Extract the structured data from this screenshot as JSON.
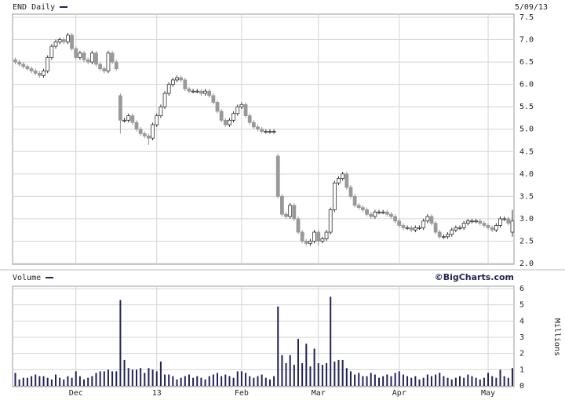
{
  "chart_data": [
    {
      "type": "candlestick",
      "title": "END Daily",
      "subtitle": "5/09/13",
      "up_color": "#ffffff",
      "down_color": "#999999",
      "outline_color": "#333333",
      "ylim": [
        2.0,
        7.5
      ],
      "yticks": [
        {
          "value": 2,
          "label": "2.0"
        },
        2.5,
        {
          "value": 3,
          "label": "3.0"
        },
        3.5,
        {
          "value": 4,
          "label": "4.0"
        },
        4.5,
        {
          "value": 5,
          "label": "5.0"
        },
        5.5,
        {
          "value": 6,
          "label": "6.0"
        },
        6.5,
        {
          "value": 7,
          "label": "7.0"
        },
        7.5
      ],
      "grid": true,
      "open": [
        6.55,
        6.5,
        6.45,
        6.4,
        6.35,
        6.3,
        6.25,
        6.2,
        6.3,
        6.6,
        6.85,
        6.95,
        7.0,
        6.95,
        7.1,
        6.8,
        6.6,
        6.7,
        6.55,
        6.5,
        6.7,
        6.45,
        6.35,
        6.3,
        6.7,
        6.5,
        5.75,
        5.2,
        5.2,
        5.3,
        5.15,
        5.0,
        4.9,
        4.85,
        4.8,
        5.1,
        5.3,
        5.5,
        5.8,
        6.0,
        6.1,
        6.15,
        6.1,
        5.9,
        5.85,
        5.85,
        5.85,
        5.8,
        5.85,
        5.75,
        5.6,
        5.4,
        5.2,
        5.1,
        5.2,
        5.35,
        5.5,
        5.55,
        5.3,
        5.15,
        5.05,
        5.0,
        4.95,
        4.95,
        4.95,
        4.4,
        3.5,
        3.1,
        3.05,
        3.3,
        3.0,
        2.7,
        2.5,
        2.45,
        2.5,
        2.7,
        2.5,
        2.55,
        2.7,
        3.2,
        3.8,
        3.9,
        4.0,
        3.7,
        3.5,
        3.3,
        3.25,
        3.2,
        3.1,
        3.05,
        3.15,
        3.15,
        3.15,
        3.1,
        3.05,
        2.95,
        2.85,
        2.8,
        2.8,
        2.75,
        2.8,
        2.8,
        2.95,
        3.05,
        2.9,
        2.7,
        2.6,
        2.6,
        2.65,
        2.75,
        2.8,
        2.8,
        2.9,
        2.95,
        2.95,
        2.95,
        2.9,
        2.85,
        2.8,
        2.75,
        2.85,
        3.0,
        3.0,
        2.7
      ],
      "high": [
        6.6,
        6.55,
        6.5,
        6.45,
        6.4,
        6.35,
        6.3,
        6.35,
        6.65,
        6.9,
        7.0,
        7.05,
        7.05,
        7.15,
        7.15,
        6.85,
        6.75,
        6.75,
        6.6,
        6.75,
        6.75,
        6.5,
        6.4,
        6.75,
        6.75,
        6.55,
        5.8,
        5.25,
        5.35,
        5.35,
        5.2,
        5.05,
        4.95,
        4.9,
        5.15,
        5.35,
        5.55,
        5.85,
        6.05,
        6.15,
        6.2,
        6.2,
        6.15,
        5.95,
        5.9,
        5.9,
        5.9,
        5.9,
        5.9,
        5.8,
        5.65,
        5.45,
        5.25,
        5.25,
        5.4,
        5.55,
        5.6,
        5.6,
        5.35,
        5.2,
        5.1,
        5.05,
        5.0,
        5.0,
        5.0,
        4.45,
        3.55,
        3.15,
        3.35,
        3.35,
        3.05,
        2.75,
        2.55,
        2.55,
        2.75,
        2.75,
        2.6,
        2.75,
        3.25,
        3.85,
        3.95,
        4.05,
        4.05,
        3.75,
        3.55,
        3.35,
        3.3,
        3.25,
        3.15,
        3.2,
        3.2,
        3.2,
        3.2,
        3.15,
        3.1,
        3.0,
        2.9,
        2.85,
        2.85,
        2.85,
        2.85,
        3.0,
        3.1,
        3.1,
        2.95,
        2.75,
        2.65,
        2.7,
        2.8,
        2.85,
        2.85,
        2.95,
        3.0,
        3.0,
        3.0,
        3.0,
        2.95,
        2.9,
        2.85,
        2.9,
        3.05,
        3.05,
        3.05,
        3.2
      ],
      "low": [
        6.45,
        6.4,
        6.35,
        6.3,
        6.25,
        6.2,
        6.15,
        6.15,
        6.25,
        6.55,
        6.8,
        6.9,
        6.9,
        6.9,
        6.75,
        6.55,
        6.55,
        6.5,
        6.45,
        6.45,
        6.4,
        6.3,
        6.25,
        6.25,
        6.45,
        6.3,
        4.9,
        5.15,
        5.15,
        5.1,
        4.95,
        4.85,
        4.8,
        4.65,
        4.75,
        5.05,
        5.25,
        5.45,
        5.75,
        5.95,
        6.05,
        6.05,
        5.85,
        5.8,
        5.8,
        5.8,
        5.75,
        5.75,
        5.7,
        5.55,
        5.35,
        5.15,
        5.05,
        5.05,
        5.15,
        5.3,
        5.45,
        5.25,
        5.1,
        5.0,
        4.95,
        4.9,
        4.9,
        4.9,
        4.9,
        3.45,
        3.05,
        3.0,
        3.0,
        2.95,
        2.65,
        2.45,
        2.4,
        2.4,
        2.45,
        2.4,
        2.45,
        2.5,
        2.65,
        3.15,
        3.75,
        3.85,
        3.65,
        3.45,
        3.25,
        3.2,
        3.15,
        3.05,
        3.0,
        3.0,
        3.1,
        3.1,
        3.05,
        3.0,
        2.9,
        2.8,
        2.75,
        2.75,
        2.7,
        2.7,
        2.75,
        2.75,
        2.9,
        2.85,
        2.65,
        2.55,
        2.55,
        2.55,
        2.6,
        2.7,
        2.75,
        2.75,
        2.85,
        2.9,
        2.9,
        2.85,
        2.8,
        2.75,
        2.7,
        2.7,
        2.8,
        2.95,
        2.85,
        2.6
      ],
      "close": [
        6.5,
        6.45,
        6.4,
        6.35,
        6.3,
        6.25,
        6.2,
        6.3,
        6.6,
        6.85,
        6.95,
        7.0,
        6.95,
        7.1,
        6.8,
        6.6,
        6.7,
        6.55,
        6.5,
        6.7,
        6.45,
        6.35,
        6.3,
        6.7,
        6.5,
        6.35,
        5.2,
        5.2,
        5.3,
        5.15,
        5.0,
        4.9,
        4.85,
        4.8,
        5.1,
        5.3,
        5.5,
        5.8,
        6.0,
        6.1,
        6.15,
        6.1,
        5.9,
        5.85,
        5.85,
        5.85,
        5.8,
        5.85,
        5.75,
        5.6,
        5.4,
        5.2,
        5.1,
        5.2,
        5.35,
        5.5,
        5.55,
        5.3,
        5.15,
        5.05,
        5.0,
        4.95,
        4.95,
        4.95,
        4.95,
        3.5,
        3.1,
        3.05,
        3.3,
        3.0,
        2.7,
        2.5,
        2.45,
        2.5,
        2.7,
        2.5,
        2.55,
        2.7,
        3.2,
        3.8,
        3.9,
        4.0,
        3.7,
        3.5,
        3.3,
        3.25,
        3.2,
        3.1,
        3.05,
        3.15,
        3.15,
        3.15,
        3.1,
        3.05,
        2.95,
        2.85,
        2.8,
        2.8,
        2.75,
        2.8,
        2.8,
        2.95,
        3.05,
        2.9,
        2.7,
        2.6,
        2.6,
        2.65,
        2.75,
        2.8,
        2.8,
        2.9,
        2.95,
        2.95,
        2.95,
        2.9,
        2.85,
        2.8,
        2.75,
        2.85,
        3.0,
        3.0,
        2.9,
        2.95
      ]
    },
    {
      "type": "bar",
      "title": "Volume",
      "source": "©BigCharts.com",
      "y_label": "Millions",
      "color": "#22225a",
      "ylim": [
        0,
        6
      ],
      "yticks": [
        0,
        1,
        2,
        3,
        4,
        5,
        6
      ],
      "grid": true,
      "categories": [
        null,
        null,
        null,
        null,
        null,
        null,
        null,
        null,
        null,
        null,
        null,
        null,
        null,
        null,
        null,
        "Dec",
        null,
        null,
        null,
        null,
        null,
        null,
        null,
        null,
        null,
        null,
        null,
        null,
        null,
        null,
        null,
        null,
        null,
        null,
        null,
        "13",
        null,
        null,
        null,
        null,
        null,
        null,
        null,
        null,
        null,
        null,
        null,
        null,
        null,
        null,
        null,
        null,
        null,
        null,
        null,
        null,
        "Feb",
        null,
        null,
        null,
        null,
        null,
        null,
        null,
        null,
        null,
        null,
        null,
        null,
        null,
        null,
        null,
        null,
        null,
        null,
        "Mar",
        null,
        null,
        null,
        null,
        null,
        null,
        null,
        null,
        null,
        null,
        null,
        null,
        null,
        null,
        null,
        null,
        null,
        null,
        null,
        "Apr",
        null,
        null,
        null,
        null,
        null,
        null,
        null,
        null,
        null,
        null,
        null,
        null,
        null,
        null,
        null,
        null,
        null,
        null,
        null,
        null,
        null,
        "May",
        null,
        null,
        null,
        null,
        null,
        null
      ],
      "values": [
        0.8,
        0.4,
        0.5,
        0.5,
        0.6,
        0.7,
        0.6,
        0.6,
        0.5,
        0.4,
        0.7,
        0.5,
        0.4,
        0.6,
        0.5,
        0.9,
        0.6,
        0.4,
        0.5,
        0.6,
        0.8,
        0.9,
        0.9,
        1.0,
        0.9,
        0.9,
        5.3,
        1.6,
        1.1,
        1.0,
        1.0,
        1.1,
        0.8,
        1.1,
        1.0,
        0.9,
        1.5,
        0.7,
        0.7,
        0.6,
        0.4,
        0.5,
        0.6,
        0.7,
        0.5,
        0.6,
        0.5,
        0.4,
        0.6,
        0.7,
        0.8,
        0.6,
        0.7,
        0.6,
        0.5,
        0.9,
        0.9,
        0.8,
        0.6,
        0.5,
        0.6,
        0.7,
        0.5,
        0.4,
        0.6,
        4.9,
        1.9,
        1.4,
        1.9,
        1.3,
        2.9,
        1.4,
        2.6,
        1.2,
        2.3,
        1.4,
        1.3,
        1.4,
        5.5,
        1.5,
        1.6,
        1.6,
        1.1,
        0.9,
        0.7,
        0.8,
        0.6,
        0.6,
        0.8,
        0.7,
        0.5,
        0.6,
        0.7,
        0.6,
        0.8,
        0.9,
        0.7,
        0.6,
        0.5,
        0.6,
        0.4,
        0.5,
        0.7,
        0.6,
        0.7,
        0.8,
        0.6,
        0.5,
        0.4,
        0.5,
        0.6,
        0.5,
        0.7,
        0.6,
        0.5,
        0.4,
        0.5,
        0.8,
        0.6,
        0.5,
        1.0,
        0.6,
        0.5,
        1.1
      ]
    }
  ]
}
